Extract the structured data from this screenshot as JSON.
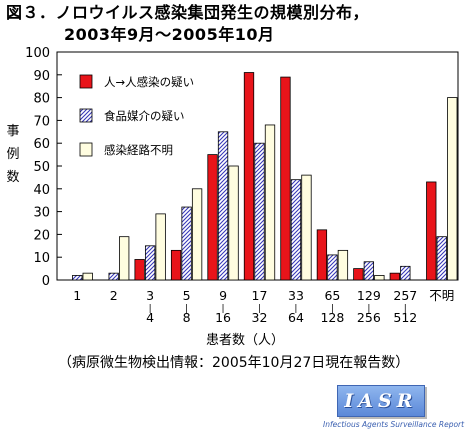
{
  "header": {
    "title_line1": "図３．ノロウイルス感染集団発生の規模別分布，",
    "title_line2": "2003年9月～2005年10月"
  },
  "footnote": "（病原微生物検出情報：2005年10月27日現在報告数）",
  "logo": {
    "text": "IASR",
    "subtitle": "Infectious Agents Surveillance Report"
  },
  "chart_data": {
    "type": "bar",
    "ylabel": "事例数",
    "xlabel": "患者数（人）",
    "ylim": [
      0,
      100
    ],
    "yticks": [
      0,
      10,
      20,
      30,
      40,
      50,
      60,
      70,
      80,
      90,
      100
    ],
    "categories": [
      {
        "line1": "1",
        "line2": ""
      },
      {
        "line1": "2",
        "line2": ""
      },
      {
        "line1": "3",
        "line2": "4"
      },
      {
        "line1": "5",
        "line2": "8"
      },
      {
        "line1": "9",
        "line2": "16"
      },
      {
        "line1": "17",
        "line2": "32"
      },
      {
        "line1": "33",
        "line2": "64"
      },
      {
        "line1": "65",
        "line2": "128"
      },
      {
        "line1": "129",
        "line2": "256"
      },
      {
        "line1": "257",
        "line2": "512"
      },
      {
        "line1": "不明",
        "line2": ""
      }
    ],
    "series": [
      {
        "name": "人→人感染の疑い",
        "pattern": "red",
        "values": [
          0,
          0,
          9,
          13,
          55,
          91,
          89,
          22,
          5,
          3,
          43
        ]
      },
      {
        "name": "食品媒介の疑い",
        "pattern": "hatch",
        "values": [
          2,
          3,
          15,
          32,
          65,
          60,
          44,
          11,
          8,
          6,
          19
        ]
      },
      {
        "name": "感染経路不明",
        "pattern": "cream",
        "values": [
          3,
          19,
          29,
          40,
          50,
          68,
          46,
          13,
          2,
          0,
          80
        ]
      }
    ],
    "colors": {
      "red": "#e8141a",
      "hatch": "#3838b8",
      "cream": "#fffde0"
    },
    "legend_position": "top-left",
    "grid": false
  }
}
